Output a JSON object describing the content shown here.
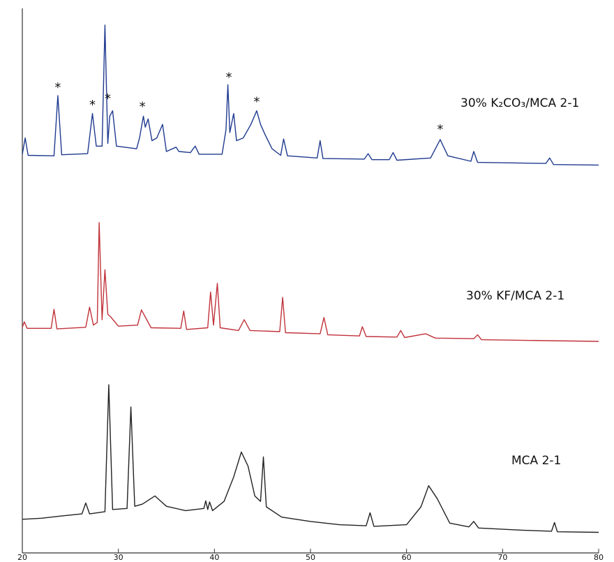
{
  "chart_data": {
    "type": "line",
    "xlim": [
      20,
      80
    ],
    "ylim": [
      0,
      100
    ],
    "xticks": [
      20,
      30,
      40,
      50,
      60,
      70,
      80
    ],
    "series": [
      {
        "name": "30% K₂CO₃/MCA 2-1",
        "color": "#1f3a8f",
        "x": [
          20.0,
          20.3,
          20.6,
          23.3,
          23.7,
          24.1,
          26.8,
          27.3,
          27.7,
          28.3,
          28.6,
          28.9,
          29.1,
          29.4,
          29.8,
          31.9,
          32.2,
          32.6,
          32.8,
          33.1,
          33.5,
          34.0,
          34.6,
          35.0,
          36.0,
          36.3,
          37.5,
          38.0,
          38.4,
          40.8,
          41.2,
          41.4,
          41.6,
          42.0,
          42.3,
          43.0,
          43.8,
          44.4,
          44.8,
          45.3,
          46.0,
          46.9,
          47.2,
          47.6,
          50.7,
          51.0,
          51.3,
          55.6,
          56.0,
          56.4,
          58.2,
          58.6,
          59.0,
          62.5,
          63.5,
          64.3,
          66.7,
          67.0,
          67.4,
          74.5,
          74.9,
          75.3,
          80.0
        ],
        "values": [
          73.5,
          76.5,
          73.3,
          73.2,
          84.3,
          73.4,
          73.6,
          81.0,
          75.0,
          75.0,
          97.3,
          75.5,
          80.5,
          81.5,
          75.0,
          74.5,
          76.5,
          80.5,
          78.5,
          80.0,
          76.0,
          76.5,
          79.0,
          74.0,
          74.8,
          74.0,
          73.8,
          75.0,
          73.5,
          73.5,
          78.0,
          86.3,
          77.5,
          81.0,
          76.0,
          76.5,
          79.0,
          81.5,
          79.0,
          77.0,
          74.5,
          73.3,
          76.3,
          73.2,
          72.8,
          76.0,
          72.7,
          72.6,
          73.6,
          72.5,
          72.5,
          73.8,
          72.4,
          72.8,
          76.2,
          73.2,
          72.2,
          74.0,
          72.0,
          71.8,
          72.8,
          71.6,
          71.5
        ]
      },
      {
        "name": "30% KF/MCA 2-1",
        "color": "#c0323a",
        "x": [
          20.0,
          20.2,
          20.5,
          23.0,
          23.3,
          23.6,
          26.6,
          27.0,
          27.4,
          27.8,
          28.0,
          28.3,
          28.6,
          28.9,
          29.2,
          30.0,
          32.0,
          32.4,
          32.8,
          33.4,
          36.5,
          36.8,
          37.1,
          39.3,
          39.6,
          39.9,
          40.3,
          40.6,
          42.5,
          43.1,
          43.7,
          46.8,
          47.1,
          47.4,
          51.0,
          51.4,
          51.8,
          55.1,
          55.4,
          55.8,
          59.0,
          59.4,
          59.8,
          62.0,
          63.0,
          67.0,
          67.4,
          67.8,
          80.0
        ],
        "values": [
          41.6,
          42.6,
          41.4,
          41.4,
          44.9,
          41.3,
          41.6,
          45.3,
          42.0,
          42.5,
          60.9,
          43.0,
          52.2,
          44.0,
          43.5,
          41.8,
          42.0,
          44.8,
          43.5,
          41.5,
          41.4,
          44.6,
          41.2,
          41.5,
          48.1,
          42.0,
          49.7,
          41.5,
          41.0,
          43.0,
          41.0,
          40.8,
          47.1,
          40.6,
          40.4,
          43.4,
          40.2,
          40.0,
          41.7,
          39.9,
          39.8,
          41.0,
          39.7,
          40.4,
          39.6,
          39.5,
          40.2,
          39.3,
          39.0
        ]
      },
      {
        "name": "MCA 2-1",
        "color": "#222222",
        "x": [
          20.0,
          22.0,
          24.0,
          26.2,
          26.6,
          27.0,
          28.6,
          29.0,
          29.4,
          30.9,
          31.3,
          31.7,
          32.5,
          33.8,
          35.0,
          37.0,
          38.9,
          39.1,
          39.3,
          39.5,
          39.8,
          41.0,
          42.0,
          42.8,
          43.5,
          44.2,
          44.8,
          45.1,
          45.4,
          47.0,
          50.0,
          53.0,
          55.8,
          56.2,
          56.6,
          60.0,
          61.5,
          62.3,
          63.2,
          64.5,
          66.5,
          67.0,
          67.5,
          72.0,
          75.1,
          75.4,
          75.7,
          80.0
        ],
        "values": [
          6.2,
          6.4,
          6.8,
          7.2,
          9.2,
          7.2,
          7.6,
          31.0,
          8.0,
          8.2,
          26.9,
          8.6,
          9.0,
          10.5,
          8.6,
          7.8,
          8.2,
          9.6,
          8.0,
          9.4,
          7.8,
          9.5,
          14.0,
          18.6,
          16.0,
          10.5,
          9.5,
          17.7,
          8.5,
          6.6,
          5.8,
          5.2,
          5.0,
          7.4,
          4.9,
          5.2,
          8.5,
          12.4,
          10.0,
          5.5,
          4.8,
          5.8,
          4.6,
          4.2,
          4.0,
          5.6,
          3.9,
          3.8
        ]
      }
    ],
    "annotations": [
      {
        "text": "*",
        "x": 23.7,
        "y": 86.2
      },
      {
        "text": "*",
        "x": 27.3,
        "y": 83.0
      },
      {
        "text": "*",
        "x": 28.9,
        "y": 84.2
      },
      {
        "text": "*",
        "x": 32.5,
        "y": 82.7
      },
      {
        "text": "*",
        "x": 41.5,
        "y": 88.1
      },
      {
        "text": "*",
        "x": 44.4,
        "y": 83.6
      },
      {
        "text": "*",
        "x": 63.5,
        "y": 78.5
      }
    ]
  }
}
